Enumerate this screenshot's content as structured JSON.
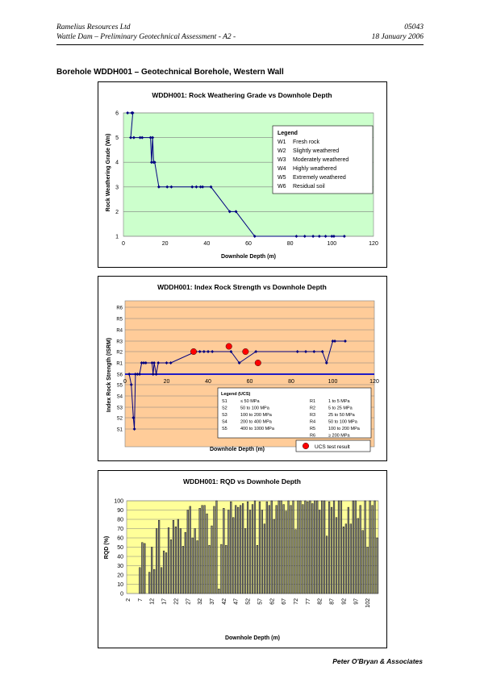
{
  "header": {
    "company": "Ramelius Resources Ltd",
    "report": "Wattle Dam – Preliminary Geotechnical Assessment  - A2 -",
    "ref": "05043",
    "date": "18 January 2006"
  },
  "section_title": "Borehole WDDH001 – Geotechnical Borehole, Western Wall",
  "footer": "Peter O'Bryan & Associates",
  "colors": {
    "plot1_bg": "#CCFFCC",
    "plot2_bg": "#FFCC99",
    "plot3_bg": "#FFFF99",
    "series": "#000080",
    "ucs": "#FF0000",
    "grid": "#808080"
  },
  "chart_data": [
    {
      "type": "line",
      "title": "WDDH001:  Rock Weathering Grade vs Downhole Depth",
      "xlabel": "Downhole Depth (m)",
      "ylabel": "Rock Weathering Grade (Wn)",
      "xlim": [
        0,
        120
      ],
      "ylim": [
        1,
        6
      ],
      "xticks": [
        "0",
        "20",
        "40",
        "60",
        "80",
        "100",
        "120"
      ],
      "yticks": [
        "1",
        "2",
        "3",
        "4",
        "5",
        "6"
      ],
      "grid": true,
      "legend_position": "top-right",
      "legend": {
        "title": "Legend",
        "items": [
          {
            "code": "W1",
            "label": "Fresh rock"
          },
          {
            "code": "W2",
            "label": "Slightly weathered"
          },
          {
            "code": "W3",
            "label": "Moderately weathered"
          },
          {
            "code": "W4",
            "label": "Highly weathered"
          },
          {
            "code": "W5",
            "label": "Extremely weathered"
          },
          {
            "code": "W6",
            "label": "Residual soil"
          }
        ]
      },
      "x": [
        2,
        4,
        4.5,
        3.5,
        5,
        8,
        9,
        13,
        13.5,
        14,
        14.5,
        15,
        17,
        21,
        23,
        33,
        35,
        37,
        38,
        42,
        51,
        54,
        63,
        83,
        87,
        91,
        94,
        97,
        100,
        101,
        106
      ],
      "y": [
        6,
        6,
        6,
        5,
        5,
        5,
        5,
        5,
        4,
        5,
        4,
        4,
        3,
        3,
        3,
        3,
        3,
        3,
        3,
        3,
        2,
        2,
        1,
        1,
        1,
        1,
        1,
        1,
        1,
        1,
        1
      ]
    },
    {
      "type": "line",
      "title": "WDDH001:  Index Rock Strength vs Downhole Depth",
      "xlabel": "Downhole Depth (m)",
      "ylabel": "Index Rock Strength (ISRM)",
      "xlim": [
        0,
        120
      ],
      "xticks": [
        "0",
        "20",
        "40",
        "60",
        "80",
        "100",
        "120"
      ],
      "yticks": [
        "R6",
        "R5",
        "R4",
        "R3",
        "R2",
        "R1",
        "S6",
        "S5",
        "S4",
        "S3",
        "S2",
        "S1"
      ],
      "grid": true,
      "legend_position": "bottom",
      "legend": {
        "title": "Legend (UCS)",
        "rows": [
          {
            "c1": "S1",
            "c2": "≤ 50 MPa",
            "c3": "R1",
            "c4": "1 to 5 MPa"
          },
          {
            "c1": "S2",
            "c2": "50 to 100 MPa",
            "c3": "R2",
            "c4": "5 to 25 MPa"
          },
          {
            "c1": "S3",
            "c2": "100 to 200 MPa",
            "c3": "R3",
            "c4": "25 to 50 MPa"
          },
          {
            "c1": "S4",
            "c2": "200 to 400 MPa",
            "c3": "R4",
            "c4": "50 to 100 MPa"
          },
          {
            "c1": "S5",
            "c2": "400 to 1000 MPa",
            "c3": "R5",
            "c4": "100 to 200 MPa"
          },
          {
            "c1": "",
            "c2": "",
            "c3": "R6",
            "c4": "≥ 200 MPa"
          }
        ]
      },
      "ucs_label": "UCS test result",
      "zero_line": "S6",
      "x": [
        2,
        3,
        4,
        4.5,
        5,
        6,
        7,
        8,
        9,
        10,
        13,
        13.5,
        14,
        15,
        16,
        20,
        22,
        34,
        36,
        38,
        40,
        42,
        51,
        55,
        63,
        83,
        87,
        91,
        95,
        97,
        100,
        101,
        106
      ],
      "y": [
        "S6",
        "S5",
        "S2",
        "S1",
        "S6",
        "S6",
        "S6",
        "R1",
        "R1",
        "R1",
        "R1",
        "S6",
        "R1",
        "S6",
        "R1",
        "R1",
        "R1",
        "R2",
        "R2",
        "R2",
        "R2",
        "R2",
        "R2",
        "R1",
        "R2",
        "R2",
        "R2",
        "R2",
        "R2",
        "R1",
        "R3",
        "R3",
        "R3"
      ],
      "ucs_points": [
        {
          "x": 33,
          "y": "R2"
        },
        {
          "x": 50,
          "y": "R2.5"
        },
        {
          "x": 58,
          "y": "R2"
        },
        {
          "x": 64,
          "y": "R1"
        }
      ]
    },
    {
      "type": "bar",
      "title": "WDDH001:  RQD vs Downhole Depth",
      "xlabel": "Downhole Depth (m)",
      "ylabel": "RQD (%)",
      "ylim": [
        0,
        100
      ],
      "yticks": [
        "0",
        "10",
        "20",
        "30",
        "40",
        "50",
        "60",
        "70",
        "80",
        "90",
        "100"
      ],
      "xtick_labels": [
        "2",
        "7",
        "12",
        "17",
        "22",
        "27",
        "32",
        "37",
        "42",
        "47",
        "52",
        "57",
        "62",
        "67",
        "72",
        "77",
        "82",
        "87",
        "92",
        "97",
        "102"
      ],
      "grid": true,
      "categories_start": 2,
      "categories_end": 106,
      "values": [
        0,
        0,
        0,
        0,
        0,
        28,
        55,
        54,
        0,
        23,
        50,
        26,
        70,
        79,
        28,
        46,
        44,
        71,
        58,
        79,
        72,
        80,
        70,
        51,
        66,
        90,
        94,
        60,
        70,
        57,
        92,
        95,
        95,
        86,
        52,
        73,
        94,
        100,
        5,
        53,
        92,
        52,
        90,
        99,
        82,
        95,
        93,
        95,
        97,
        70,
        99,
        90,
        96,
        100,
        52,
        99,
        90,
        75,
        99,
        95,
        100,
        80,
        95,
        100,
        100,
        96,
        89,
        100,
        95,
        100,
        69,
        100,
        100,
        96,
        100,
        99,
        100,
        97,
        100,
        100,
        90,
        100,
        100,
        62,
        99,
        93,
        100,
        82,
        100,
        100,
        72,
        75,
        93,
        75,
        100,
        100,
        81,
        95,
        68,
        100,
        50,
        100,
        95,
        100,
        60
      ]
    }
  ]
}
